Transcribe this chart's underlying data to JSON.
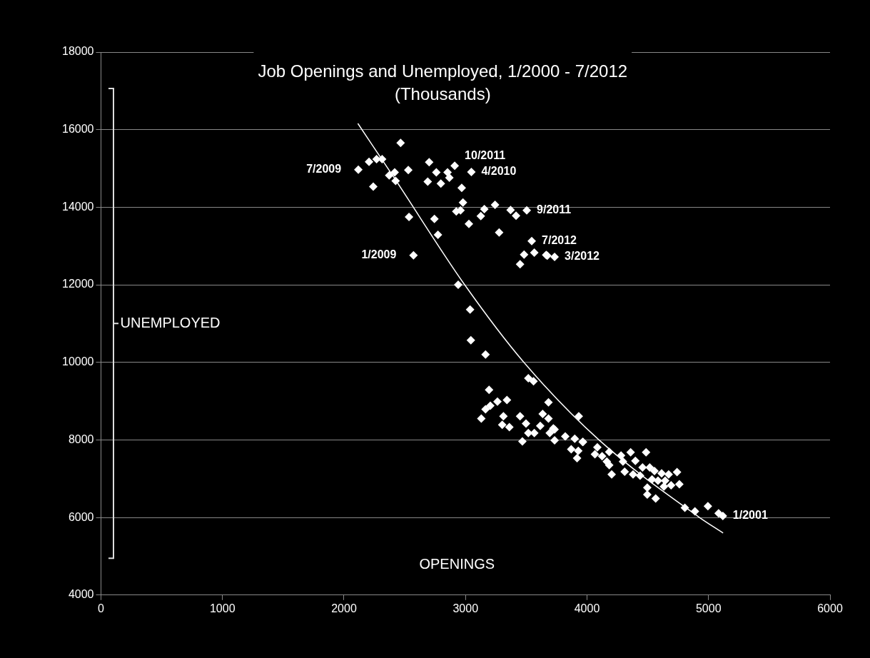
{
  "chart_data": {
    "type": "scatter",
    "title": "Job Openings and Unemployed, 1/2000 - 7/2012",
    "subtitle": "(Thousands)",
    "xlabel": "OPENINGS",
    "ylabel": "UNEMPLOYED",
    "xlim": [
      0,
      6000
    ],
    "xticks": [
      0,
      1000,
      2000,
      3000,
      4000,
      5000,
      6000
    ],
    "ylim": [
      4000,
      18000
    ],
    "yticks": [
      4000,
      6000,
      8000,
      10000,
      12000,
      14000,
      16000,
      18000
    ],
    "grid": "y",
    "legend": false,
    "marker": "diamond",
    "series": [
      {
        "type": "scatter",
        "color": "#ffffff",
        "x": [
          2118,
          2206,
          2268,
          2314,
          2466,
          2241,
          2372,
          2417,
          2425,
          2529,
          2701,
          2760,
          2852,
          2867,
          2911,
          3048,
          2689,
          2797,
          2969,
          2979,
          2959,
          2924,
          3155,
          3243,
          3371,
          3416,
          3504,
          3126,
          3028,
          2535,
          2744,
          2773,
          3277,
          3545,
          3482,
          3566,
          3664,
          3673,
          3733,
          3449,
          2572,
          2940,
          3038,
          3044,
          3165,
          3517,
          3560,
          3194,
          3341,
          3683,
          3932,
          3263,
          3204,
          3165,
          3130,
          3312,
          3302,
          3361,
          3449,
          3498,
          3517,
          3635,
          3683,
          3615,
          3723,
          3566,
          3693,
          3468,
          3733,
          3821,
          3899,
          3964,
          4085,
          3733,
          3967,
          3870,
          3928,
          3918,
          4065,
          4124,
          4183,
          4163,
          4183,
          4203,
          4280,
          4296,
          4359,
          4398,
          4310,
          4486,
          4379,
          4437,
          4457,
          4516,
          4555,
          4614,
          4672,
          4741,
          4535,
          4584,
          4643,
          4692,
          4633,
          4496,
          4760,
          4496,
          4565,
          4805,
          4888,
          4995,
          5083,
          5118
        ],
        "values": [
          14970,
          15170,
          15240,
          15240,
          15660,
          14530,
          14820,
          14900,
          14680,
          14960,
          15160,
          14900,
          14900,
          14760,
          15070,
          14910,
          14660,
          14610,
          14500,
          14120,
          13920,
          13890,
          13950,
          14060,
          13930,
          13780,
          13920,
          13770,
          13570,
          13750,
          13700,
          13290,
          13350,
          13130,
          12780,
          12830,
          12770,
          12750,
          12720,
          12530,
          12760,
          12000,
          11360,
          10570,
          10200,
          9590,
          9510,
          9290,
          9030,
          8970,
          8610,
          8990,
          8880,
          8790,
          8550,
          8610,
          8390,
          8330,
          8610,
          8420,
          8180,
          8670,
          8550,
          8360,
          8300,
          8180,
          8180,
          7960,
          7990,
          8090,
          8030,
          7950,
          7810,
          8270,
          7950,
          7760,
          7720,
          7530,
          7630,
          7580,
          7690,
          7440,
          7350,
          7110,
          7600,
          7440,
          7680,
          7460,
          7180,
          7680,
          7110,
          7080,
          7290,
          7290,
          7200,
          7140,
          7110,
          7170,
          6980,
          6950,
          6950,
          6830,
          6800,
          6770,
          6860,
          6590,
          6490,
          6250,
          6160,
          6290,
          6110,
          6040
        ]
      },
      {
        "type": "line",
        "color": "#ffffff",
        "marker": "none",
        "x": [
          2114,
          2419,
          2989,
          3478,
          4095,
          4917,
          5120
        ],
        "values": [
          16160,
          14730,
          12020,
          10010,
          8010,
          6020,
          5600
        ]
      }
    ],
    "annotations": [
      {
        "text": "7/2009",
        "x": 2118,
        "y": 14970
      },
      {
        "text": "10/2011",
        "x": 2911,
        "y": 15070
      },
      {
        "text": "4/2010",
        "x": 3048,
        "y": 14910
      },
      {
        "text": "9/2011",
        "x": 3504,
        "y": 13920
      },
      {
        "text": "7/2012",
        "x": 3545,
        "y": 13130
      },
      {
        "text": "3/2012",
        "x": 3733,
        "y": 12720
      },
      {
        "text": "1/2009",
        "x": 2572,
        "y": 12760
      },
      {
        "text": "1/2001",
        "x": 5118,
        "y": 6040
      }
    ]
  }
}
